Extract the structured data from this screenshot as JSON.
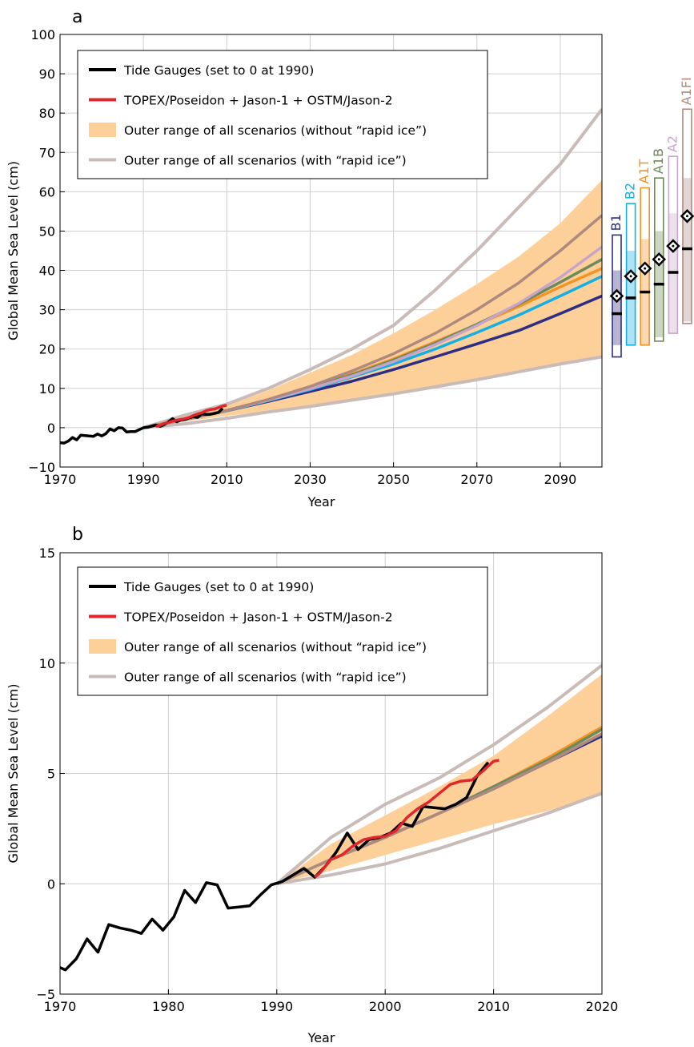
{
  "chart_data": [
    {
      "type": "line",
      "panel_label": "a",
      "xlabel": "Year",
      "ylabel": "Global Mean Sea Level (cm)",
      "xlim": [
        1970,
        2100
      ],
      "ylim": [
        -10,
        100
      ],
      "xticks": [
        1970,
        1990,
        2010,
        2030,
        2050,
        2070,
        2090
      ],
      "yticks": [
        -10,
        0,
        10,
        20,
        30,
        40,
        50,
        60,
        70,
        80,
        90,
        100
      ],
      "xtick_labels": [
        "1970",
        "1990",
        "2010",
        "2030",
        "2050",
        "2070",
        "2090"
      ],
      "ytick_labels": [
        "−10",
        "0",
        "10",
        "20",
        "30",
        "40",
        "50",
        "60",
        "70",
        "80",
        "90",
        "100"
      ],
      "grid": true,
      "legend_position": "top-left",
      "legend": [
        {
          "label": "Tide Gauges (set to 0 at 1990)",
          "color": "#000000",
          "style": "line"
        },
        {
          "label": "TOPEX/Poseidon + Jason-1 + OSTM/Jason-2",
          "color": "#e0262b",
          "style": "line"
        },
        {
          "label": "Outer range of all scenarios (without “rapid ice”)",
          "color": "#fdd09a",
          "style": "patch"
        },
        {
          "label": "Outer range of all scenarios (with “rapid ice”)",
          "color": "#c9bbb7",
          "style": "line"
        }
      ],
      "tide_gauges": {
        "x": [
          1970,
          1971,
          1972,
          1973,
          1974,
          1975,
          1976,
          1977,
          1978,
          1979,
          1980,
          1981,
          1982,
          1983,
          1984,
          1985,
          1986,
          1987,
          1988,
          1989,
          1990,
          1991,
          1992,
          1993,
          1994,
          1995,
          1996,
          1997,
          1998,
          1999,
          2000,
          2001,
          2002,
          2003,
          2004,
          2005,
          2006,
          2007,
          2008,
          2009
        ],
        "y": [
          -3.8,
          -3.9,
          -3.4,
          -2.5,
          -3.1,
          -1.9,
          -2.0,
          -2.1,
          -2.2,
          -1.6,
          -2.1,
          -1.5,
          -0.3,
          -0.8,
          0.0,
          -0.1,
          -1.1,
          -1.0,
          -1.0,
          -0.5,
          0.0,
          0.1,
          0.4,
          0.7,
          0.3,
          0.8,
          1.5,
          2.3,
          1.5,
          2.0,
          2.1,
          2.5,
          2.8,
          2.6,
          3.5,
          3.4,
          3.4,
          3.6,
          3.9,
          4.9
        ]
      },
      "satellite": {
        "x": [
          1993,
          1994,
          1995,
          1996,
          1997,
          1998,
          1999,
          2000,
          2001,
          2002,
          2003,
          2004,
          2005,
          2006,
          2007,
          2008,
          2009,
          2010
        ],
        "y": [
          0.3,
          0.6,
          1.1,
          1.3,
          1.7,
          1.9,
          2.1,
          2.3,
          2.6,
          3.1,
          3.5,
          3.8,
          4.3,
          4.6,
          4.7,
          5.1,
          5.5,
          5.7
        ]
      },
      "range_without_rapid_ice": {
        "x": [
          1990,
          2000,
          2010,
          2020,
          2030,
          2040,
          2050,
          2060,
          2070,
          2080,
          2090,
          2100
        ],
        "lower": [
          0.0,
          1.6,
          3.0,
          4.2,
          5.6,
          7.2,
          8.8,
          10.5,
          12.2,
          14.0,
          16.0,
          18.0
        ],
        "upper": [
          0.0,
          3.5,
          5.6,
          9.5,
          14.0,
          18.5,
          24.0,
          30.0,
          36.5,
          43.5,
          52.0,
          63.0
        ]
      },
      "range_with_rapid_ice": {
        "x": [
          1990,
          2000,
          2010,
          2020,
          2030,
          2040,
          2050,
          2060,
          2070,
          2080,
          2090,
          2100
        ],
        "lower": [
          0.0,
          1.0,
          2.4,
          4.0,
          5.4,
          7.0,
          8.6,
          10.4,
          12.2,
          14.2,
          16.2,
          18.0
        ],
        "upper": [
          0.0,
          3.2,
          6.0,
          10.0,
          14.8,
          20.0,
          26.0,
          35.0,
          45.0,
          56.0,
          67.0,
          81.0
        ]
      },
      "series": [
        {
          "name": "B1",
          "color": "#2d2e83",
          "x": [
            1990,
            2000,
            2010,
            2020,
            2030,
            2040,
            2050,
            2060,
            2070,
            2080,
            2090,
            2100
          ],
          "values": [
            0,
            2.1,
            4.3,
            6.7,
            9.2,
            11.8,
            14.8,
            18.0,
            21.3,
            24.7,
            29.0,
            33.5
          ]
        },
        {
          "name": "B2",
          "color": "#14b0e3",
          "x": [
            1990,
            2000,
            2010,
            2020,
            2030,
            2040,
            2050,
            2060,
            2070,
            2080,
            2090,
            2100
          ],
          "values": [
            0,
            2.1,
            4.3,
            6.9,
            9.7,
            12.9,
            16.2,
            20.0,
            24.2,
            28.6,
            33.5,
            38.5
          ]
        },
        {
          "name": "A1T",
          "color": "#f39324",
          "x": [
            1990,
            2000,
            2010,
            2020,
            2030,
            2040,
            2050,
            2060,
            2070,
            2080,
            2090,
            2100
          ],
          "values": [
            0,
            2.1,
            4.4,
            7.1,
            10.2,
            13.6,
            17.5,
            21.8,
            26.2,
            30.8,
            35.8,
            40.5
          ]
        },
        {
          "name": "A1B",
          "color": "#6c8a5a",
          "x": [
            1990,
            2000,
            2010,
            2020,
            2030,
            2040,
            2050,
            2060,
            2070,
            2080,
            2090,
            2100
          ],
          "values": [
            0,
            2.1,
            4.4,
            7.1,
            10.1,
            13.4,
            17.2,
            21.5,
            26.3,
            31.4,
            37.0,
            42.8
          ]
        },
        {
          "name": "A2",
          "color": "#c7a5c9",
          "x": [
            1990,
            2000,
            2010,
            2020,
            2030,
            2040,
            2050,
            2060,
            2070,
            2080,
            2090,
            2100
          ],
          "values": [
            0,
            2.1,
            4.4,
            7.0,
            9.9,
            13.1,
            16.8,
            21.1,
            26.0,
            31.6,
            38.2,
            46.0
          ]
        },
        {
          "name": "A1FI",
          "color": "#ae8a7e",
          "x": [
            1990,
            2000,
            2010,
            2020,
            2030,
            2040,
            2050,
            2060,
            2070,
            2080,
            2090,
            2100
          ],
          "values": [
            0,
            2.1,
            4.4,
            7.2,
            10.5,
            14.4,
            18.8,
            24.0,
            30.0,
            36.8,
            45.0,
            54.0
          ]
        }
      ],
      "scenario_bars": [
        {
          "name": "B1",
          "color": "#2d2e83",
          "outer_low": 18,
          "outer_high": 49,
          "inner_low": 21,
          "inner_high": 40,
          "median": 29,
          "diamond": 33.5
        },
        {
          "name": "B2",
          "color": "#14b0e3",
          "outer_low": 21,
          "outer_high": 57,
          "inner_low": 21,
          "inner_high": 45,
          "median": 33,
          "diamond": 38.5
        },
        {
          "name": "A1T",
          "color": "#f39324",
          "outer_low": 21,
          "outer_high": 61,
          "inner_low": 21,
          "inner_high": 48,
          "median": 34.5,
          "diamond": 40.5
        },
        {
          "name": "A1B",
          "color": "#6c8a5a",
          "outer_low": 22,
          "outer_high": 63.5,
          "inner_low": 23,
          "inner_high": 50,
          "median": 36.5,
          "diamond": 42.8
        },
        {
          "name": "A2",
          "color": "#c7a5c9",
          "outer_low": 24,
          "outer_high": 69,
          "inner_low": 24,
          "inner_high": 54.5,
          "median": 39.5,
          "diamond": 46.2
        },
        {
          "name": "A1FI",
          "color": "#ae8a7e",
          "outer_low": 26.5,
          "outer_high": 81,
          "inner_low": 27,
          "inner_high": 63.5,
          "median": 45.5,
          "diamond": 53.8
        }
      ]
    },
    {
      "type": "line",
      "panel_label": "b",
      "xlabel": "Year",
      "ylabel": "Global Mean Sea Level (cm)",
      "xlim": [
        1970,
        2020
      ],
      "ylim": [
        -5,
        15
      ],
      "xticks": [
        1970,
        1980,
        1990,
        2000,
        2010,
        2020
      ],
      "yticks": [
        -5,
        0,
        5,
        10,
        15
      ],
      "xtick_labels": [
        "1970",
        "1980",
        "1990",
        "2000",
        "2010",
        "2020"
      ],
      "ytick_labels": [
        "−5",
        "0",
        "5",
        "10",
        "15"
      ],
      "grid": true,
      "legend_position": "top-left",
      "legend": [
        {
          "label": "Tide Gauges (set to 0 at 1990)",
          "color": "#000000",
          "style": "line"
        },
        {
          "label": "TOPEX/Poseidon + Jason-1 + OSTM/Jason-2",
          "color": "#e0262b",
          "style": "line"
        },
        {
          "label": "Outer range of all scenarios (without “rapid ice”)",
          "color": "#fdd09a",
          "style": "patch"
        },
        {
          "label": "Outer range of all scenarios (with “rapid ice”)",
          "color": "#c9bbb7",
          "style": "line"
        }
      ],
      "tide_gauges": {
        "x": [
          1970,
          1970.5,
          1971.5,
          1972.5,
          1973.5,
          1974.5,
          1975.5,
          1976.5,
          1977.5,
          1978.5,
          1979.5,
          1980.5,
          1981.5,
          1982.5,
          1983.5,
          1984.5,
          1985.5,
          1986.5,
          1987.5,
          1988.5,
          1989.5,
          1990.5,
          1991.5,
          1992.5,
          1993.5,
          1994.5,
          1995.5,
          1996.5,
          1997.5,
          1998.5,
          1999.5,
          2000.5,
          2001.5,
          2002.5,
          2003.5,
          2004.5,
          2005.5,
          2006.5,
          2007.5,
          2008.5,
          2009.5
        ],
        "y": [
          -3.8,
          -3.9,
          -3.4,
          -2.5,
          -3.1,
          -1.85,
          -2.0,
          -2.1,
          -2.25,
          -1.6,
          -2.1,
          -1.5,
          -0.3,
          -0.85,
          0.05,
          -0.05,
          -1.1,
          -1.05,
          -1.0,
          -0.5,
          -0.05,
          0.1,
          0.4,
          0.7,
          0.3,
          0.8,
          1.45,
          2.3,
          1.55,
          2.0,
          2.1,
          2.3,
          2.75,
          2.6,
          3.5,
          3.45,
          3.4,
          3.6,
          3.9,
          4.9,
          5.5
        ]
      },
      "satellite": {
        "x": [
          1993.5,
          1994,
          1995,
          1996,
          1997,
          1998,
          1999,
          2000,
          2001,
          2002,
          2003,
          2004,
          2005,
          2006,
          2007,
          2008,
          2009,
          2010,
          2010.5
        ],
        "y": [
          0.3,
          0.5,
          1.1,
          1.3,
          1.7,
          2.0,
          2.1,
          2.15,
          2.4,
          3.0,
          3.4,
          3.7,
          4.1,
          4.5,
          4.65,
          4.7,
          5.1,
          5.55,
          5.6
        ]
      },
      "range_without_rapid_ice": {
        "x": [
          1990,
          1995,
          2000,
          2005,
          2010,
          2015,
          2020
        ],
        "lower": [
          0.0,
          0.6,
          1.3,
          2.0,
          2.7,
          3.3,
          4.0
        ],
        "upper": [
          0.0,
          1.8,
          3.1,
          4.4,
          5.8,
          7.6,
          9.5
        ]
      },
      "range_with_rapid_ice": {
        "x": [
          1990,
          1995,
          2000,
          2005,
          2010,
          2015,
          2020
        ],
        "lower": [
          0.0,
          0.4,
          0.9,
          1.6,
          2.4,
          3.2,
          4.1
        ],
        "upper": [
          0.0,
          2.1,
          3.6,
          4.8,
          6.3,
          8.0,
          9.9
        ]
      },
      "series": [
        {
          "name": "B1",
          "color": "#2d2e83",
          "x": [
            1990,
            1995,
            2000,
            2005,
            2010,
            2015,
            2020
          ],
          "values": [
            0,
            1.1,
            2.1,
            3.2,
            4.3,
            5.5,
            6.7
          ]
        },
        {
          "name": "B2",
          "color": "#14b0e3",
          "x": [
            1990,
            1995,
            2000,
            2005,
            2010,
            2015,
            2020
          ],
          "values": [
            0,
            1.1,
            2.1,
            3.2,
            4.3,
            5.6,
            7.0
          ]
        },
        {
          "name": "A1T",
          "color": "#f39324",
          "x": [
            1990,
            1995,
            2000,
            2005,
            2010,
            2015,
            2020
          ],
          "values": [
            0,
            1.1,
            2.1,
            3.2,
            4.4,
            5.7,
            7.1
          ]
        },
        {
          "name": "A1B",
          "color": "#6c8a5a",
          "x": [
            1990,
            1995,
            2000,
            2005,
            2010,
            2015,
            2020
          ],
          "values": [
            0,
            1.1,
            2.1,
            3.2,
            4.4,
            5.6,
            7.0
          ]
        },
        {
          "name": "A2",
          "color": "#c7a5c9",
          "x": [
            1990,
            1995,
            2000,
            2005,
            2010,
            2015,
            2020
          ],
          "values": [
            0,
            1.1,
            2.1,
            3.2,
            4.3,
            5.5,
            6.8
          ]
        },
        {
          "name": "A1FI",
          "color": "#ae8a7e",
          "x": [
            1990,
            1995,
            2000,
            2005,
            2010,
            2015,
            2020
          ],
          "values": [
            0,
            1.1,
            2.1,
            3.2,
            4.3,
            5.5,
            6.8
          ]
        }
      ]
    }
  ]
}
